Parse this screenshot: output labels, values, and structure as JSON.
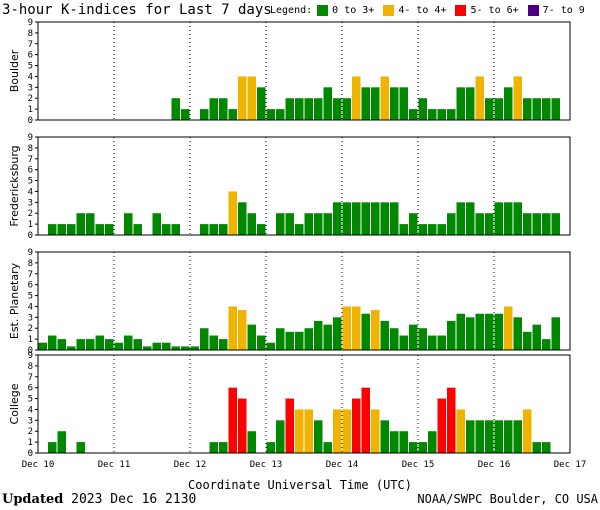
{
  "title": "3-hour K-indices for Last 7 days",
  "legend": {
    "label": "Legend:",
    "items": [
      {
        "label": "0 to 3+",
        "color": "#008800"
      },
      {
        "label": "4- to 4+",
        "color": "#f0b400"
      },
      {
        "label": "5- to 6+",
        "color": "#ff0000"
      },
      {
        "label": "7- to 9",
        "color": "#4b0082"
      }
    ]
  },
  "footer": {
    "updated_label": "Updated",
    "updated_value": "2023 Dec 16 2130",
    "source": "NOAA/SWPC Boulder, CO USA"
  },
  "chart_data": {
    "type": "bar",
    "xlabel": "Coordinate Universal Time (UTC)",
    "x_tick_labels": [
      "Dec 10",
      "Dec 11",
      "Dec 12",
      "Dec 13",
      "Dec 14",
      "Dec 15",
      "Dec 16",
      "Dec 17"
    ],
    "ylim": [
      0,
      9
    ],
    "y_ticks": [
      0,
      1,
      2,
      3,
      4,
      5,
      6,
      7,
      8,
      9
    ],
    "grid": true,
    "color_thresholds": {
      "green_below": 3.67,
      "yellow_below": 4.67,
      "red_below": 6.67
    },
    "panels": [
      {
        "name": "Boulder",
        "values": [
          0,
          0,
          0,
          0,
          0,
          0,
          0,
          0,
          0,
          0,
          0,
          0,
          0,
          0,
          2,
          1,
          0,
          1,
          2,
          2,
          1,
          4,
          4,
          3,
          1,
          1,
          2,
          2,
          2,
          2,
          3,
          2,
          2,
          4,
          3,
          3,
          4,
          3,
          3,
          1,
          2,
          1,
          1,
          1,
          3,
          3,
          4,
          2,
          2,
          3,
          4,
          2,
          2,
          2,
          2,
          0
        ]
      },
      {
        "name": "Fredericksburg",
        "values": [
          0,
          1,
          1,
          1,
          2,
          2,
          1,
          1,
          0,
          2,
          1,
          0,
          2,
          1,
          1,
          0,
          0,
          1,
          1,
          1,
          4,
          3,
          2,
          1,
          0,
          2,
          2,
          1,
          2,
          2,
          2,
          3,
          3,
          3,
          3,
          3,
          3,
          3,
          1,
          2,
          1,
          1,
          1,
          2,
          3,
          3,
          2,
          2,
          3,
          3,
          3,
          2,
          2,
          2,
          2,
          0
        ]
      },
      {
        "name": "Est. Planetary",
        "values": [
          0.67,
          1.33,
          1,
          0.33,
          1,
          1,
          1.33,
          1,
          0.67,
          1.33,
          1,
          0.33,
          0.67,
          0.67,
          0.33,
          0.33,
          0.33,
          2,
          1.33,
          1,
          4,
          3.67,
          2.33,
          1.33,
          0.67,
          2,
          1.67,
          1.67,
          2,
          2.67,
          2.33,
          3,
          4,
          4,
          3.33,
          3.67,
          2.67,
          2,
          1.33,
          2.33,
          2,
          1.33,
          1.33,
          2.67,
          3.33,
          3,
          3.33,
          3.33,
          3.33,
          4,
          3,
          1.67,
          2.33,
          1,
          3,
          0
        ]
      },
      {
        "name": "College",
        "values": [
          0,
          1,
          2,
          0,
          1,
          0,
          0,
          0,
          0,
          0,
          0,
          0,
          0,
          0,
          0,
          0,
          0,
          0,
          1,
          1,
          6,
          5,
          2,
          0,
          1,
          3,
          5,
          4,
          4,
          3,
          1,
          4,
          4,
          5,
          6,
          4,
          3,
          2,
          2,
          1,
          1,
          2,
          5,
          6,
          4,
          3,
          3,
          3,
          3,
          3,
          3,
          4,
          1,
          1,
          0,
          0
        ]
      }
    ]
  }
}
